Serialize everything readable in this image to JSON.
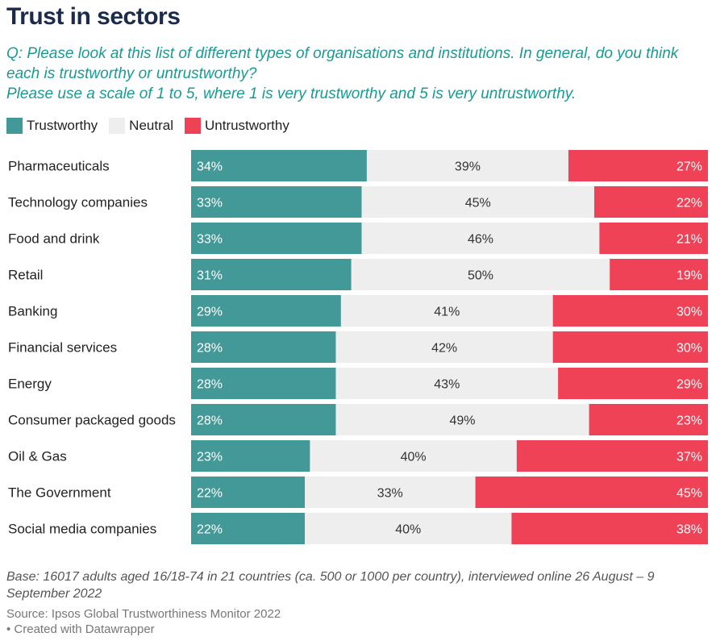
{
  "title": "Trust in sectors",
  "subtitle": "Q: Please look at this list of different types of organisations and institutions. In general, do you think each is trustworthy or untrustworthy?\nPlease use a scale of 1 to 5, where 1 is very trustworthy and 5 is very untrustworthy.",
  "footnote": "Base: 16017 adults aged 16/18-74 in 21 countries (ca. 500 or 1000 per country), interviewed online 26 August – 9 September 2022",
  "source": "Source: Ipsos Global Trustworthiness Monitor 2022",
  "credit": "• Created with Datawrapper",
  "colors": {
    "trustworthy": "#429998",
    "neutral": "#eeeeee",
    "untrustworthy": "#f04257"
  },
  "chart_data": {
    "type": "bar",
    "orientation": "horizontal-stacked-100",
    "categories": [
      "Pharmaceuticals",
      "Technology companies",
      "Food and drink",
      "Retail",
      "Banking",
      "Financial services",
      "Energy",
      "Consumer packaged goods",
      "Oil & Gas",
      "The Government",
      "Social media companies"
    ],
    "series": [
      {
        "name": "Trustworthy",
        "values": [
          34,
          33,
          33,
          31,
          29,
          28,
          28,
          28,
          23,
          22,
          22
        ]
      },
      {
        "name": "Neutral",
        "values": [
          39,
          45,
          46,
          50,
          41,
          42,
          43,
          49,
          40,
          33,
          40
        ]
      },
      {
        "name": "Untrustworthy",
        "values": [
          27,
          22,
          21,
          19,
          30,
          30,
          29,
          23,
          37,
          45,
          38
        ]
      }
    ],
    "value_suffix": "%",
    "legend": "top-left",
    "grid": false
  }
}
